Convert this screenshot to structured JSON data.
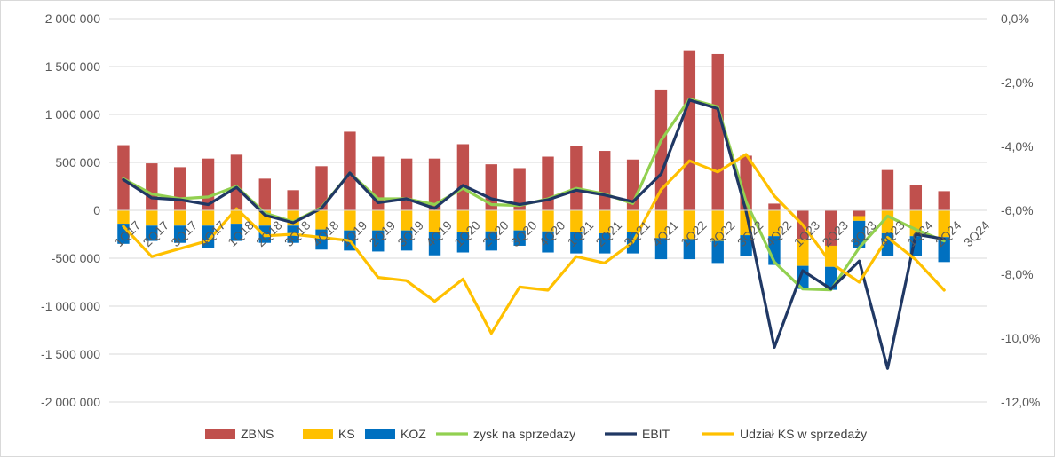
{
  "chart_data": {
    "type": "bar",
    "title": "",
    "xlabel": "",
    "ylabel": "",
    "categories": [
      "1Q17",
      "2Q17",
      "3Q17",
      "4Q17",
      "1Q18",
      "2Q18",
      "3Q18",
      "4Q18",
      "1Q19",
      "2Q19",
      "3Q19",
      "4Q19",
      "1Q20",
      "2Q20",
      "3Q20",
      "4Q20",
      "1Q21",
      "2Q21",
      "3Q21",
      "4Q21",
      "1Q22",
      "2Q22",
      "3Q22",
      "4Q22",
      "1Q23",
      "2Q23",
      "3Q23",
      "4Q23",
      "1Q24",
      "2Q24",
      "3Q24"
    ],
    "ylim": [
      -2000000,
      2000000
    ],
    "y2lim": [
      -0.12,
      0.0
    ],
    "y_ticks": [
      "2 000 000",
      "1 500 000",
      "1 000 000",
      "500 000",
      "0",
      "-500 000",
      "-1 000 000",
      "-1 500 000",
      "-2 000 000"
    ],
    "y2_ticks": [
      "0,0%",
      "-2,0%",
      "-4,0%",
      "-6,0%",
      "-8,0%",
      "-10,0%",
      "-12,0%"
    ],
    "grid": true,
    "legend_position": "bottom",
    "bar_series": [
      {
        "name": "ZBNS",
        "color": "#c0504d",
        "values": [
          680000,
          490000,
          450000,
          540000,
          580000,
          330000,
          210000,
          460000,
          820000,
          560000,
          540000,
          540000,
          690000,
          480000,
          440000,
          560000,
          670000,
          620000,
          530000,
          1260000,
          1670000,
          1630000,
          570000,
          70000,
          -300000,
          -370000,
          -60000,
          420000,
          260000,
          200000,
          null
        ]
      },
      {
        "name": "KS",
        "color": "#ffc000",
        "values": [
          -140000,
          -160000,
          -160000,
          -160000,
          -140000,
          -160000,
          -160000,
          -200000,
          -210000,
          -210000,
          -210000,
          -230000,
          -230000,
          -220000,
          -210000,
          -220000,
          -230000,
          -240000,
          -230000,
          -290000,
          -300000,
          -320000,
          -260000,
          -270000,
          -280000,
          -220000,
          -50000,
          -240000,
          -270000,
          -280000,
          null
        ]
      },
      {
        "name": "KOZ",
        "color": "#0070c0",
        "values": [
          -210000,
          -160000,
          -180000,
          -230000,
          -180000,
          -180000,
          -180000,
          -210000,
          -210000,
          -220000,
          -210000,
          -240000,
          -210000,
          -200000,
          -160000,
          -220000,
          -220000,
          -210000,
          -220000,
          -220000,
          -210000,
          -230000,
          -220000,
          -300000,
          -240000,
          -240000,
          -280000,
          -240000,
          -210000,
          -260000,
          null
        ]
      }
    ],
    "line_series": [
      {
        "name": "zysk na sprzedazy",
        "color": "#92d050",
        "axis": "left",
        "values": [
          330000,
          170000,
          120000,
          140000,
          250000,
          -30000,
          -120000,
          30000,
          390000,
          120000,
          120000,
          60000,
          230000,
          60000,
          50000,
          120000,
          230000,
          170000,
          70000,
          730000,
          1160000,
          1080000,
          90000,
          -540000,
          -820000,
          -830000,
          -390000,
          -60000,
          -200000,
          -320000,
          null
        ]
      },
      {
        "name": "EBIT",
        "color": "#203864",
        "axis": "left",
        "values": [
          320000,
          130000,
          110000,
          60000,
          240000,
          -50000,
          -130000,
          20000,
          390000,
          80000,
          120000,
          20000,
          260000,
          120000,
          60000,
          110000,
          210000,
          160000,
          90000,
          380000,
          1150000,
          1060000,
          -10000,
          -1430000,
          -630000,
          -820000,
          -530000,
          -1650000,
          -250000,
          -300000,
          null
        ]
      },
      {
        "name": "Udział KS w sprzedaży",
        "color": "#ffc000",
        "axis": "right",
        "values": [
          -0.065,
          -0.0745,
          -0.072,
          -0.0695,
          -0.0595,
          -0.068,
          -0.0675,
          -0.0685,
          -0.0695,
          -0.081,
          -0.082,
          -0.0885,
          -0.0815,
          -0.0985,
          -0.084,
          -0.085,
          -0.0745,
          -0.0765,
          -0.07,
          -0.0535,
          -0.0445,
          -0.048,
          -0.0425,
          -0.0555,
          -0.0645,
          -0.0765,
          -0.0825,
          -0.0685,
          -0.0755,
          -0.085,
          null
        ]
      }
    ],
    "legend": [
      "ZBNS",
      "KS",
      "KOZ",
      "zysk na sprzedazy",
      "EBIT",
      "Udział KS w sprzedaży"
    ]
  }
}
